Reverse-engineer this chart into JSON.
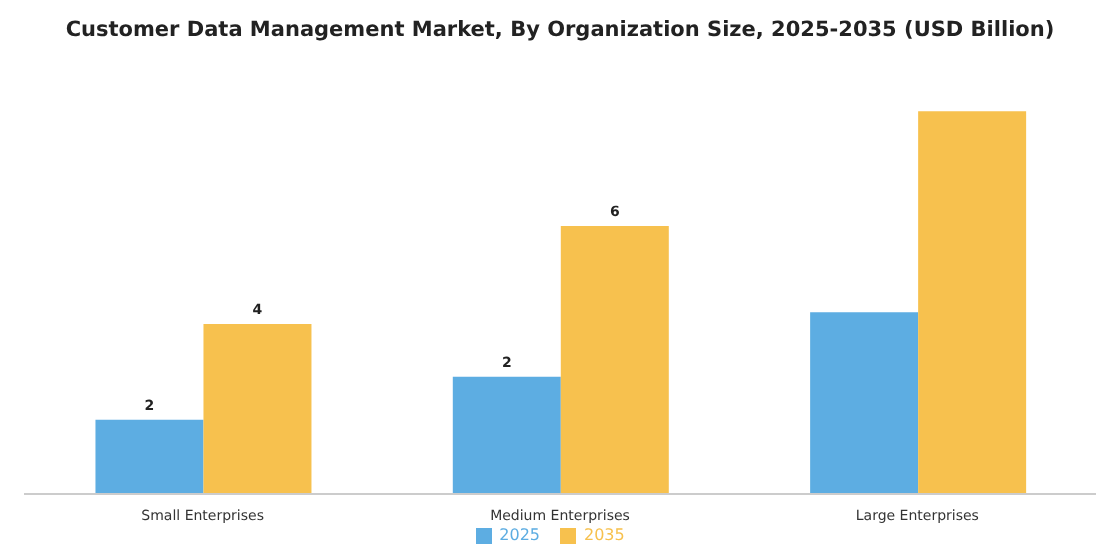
{
  "chart_data": {
    "type": "bar",
    "title": "Customer Data Management Market, By Organization Size, 2025-2035 (USD Billion)",
    "categories": [
      "Small Enterprises",
      "Medium Enterprises",
      "Large Enterprises"
    ],
    "legend": "bottom",
    "grid": false,
    "series": [
      {
        "name": "2025",
        "color": "#5dade2",
        "values": [
          1.55,
          2.45,
          3.8
        ],
        "value_labels": [
          "2",
          "2",
          null
        ]
      },
      {
        "name": "2035",
        "color": "#f7c14e",
        "values": [
          3.55,
          5.6,
          8.0
        ],
        "value_labels": [
          "4",
          "6",
          null
        ]
      }
    ]
  }
}
